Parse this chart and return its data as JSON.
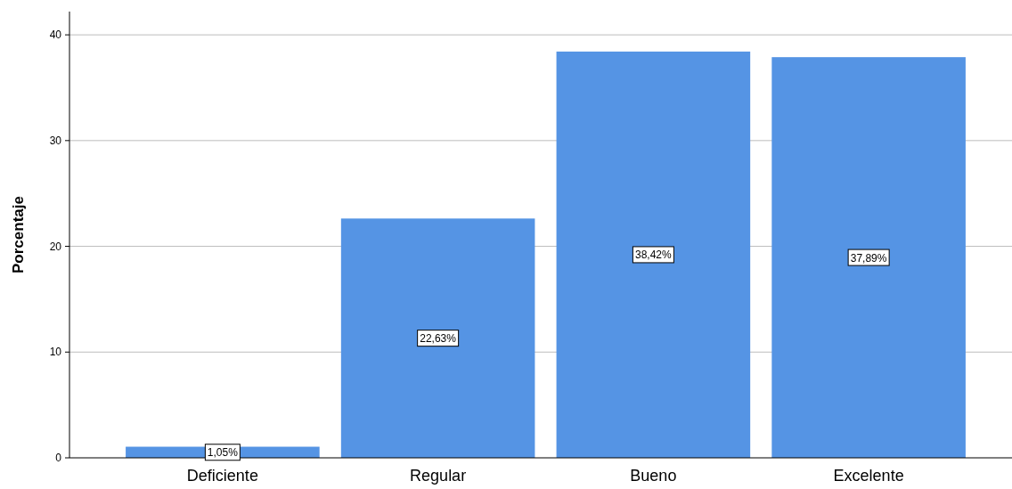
{
  "chart_data": {
    "type": "bar",
    "ylabel": "Porcentaje",
    "categories": [
      "Deficiente",
      "Regular",
      "Bueno",
      "Excelente"
    ],
    "values": [
      1.05,
      22.63,
      38.42,
      37.89
    ],
    "value_labels": [
      "1,05%",
      "22,63%",
      "38,42%",
      "37,89%"
    ],
    "color": "#5594e4",
    "ylim": [
      0,
      42.2
    ],
    "yticks": [
      0,
      10,
      20,
      30,
      40
    ],
    "grid": "y"
  }
}
